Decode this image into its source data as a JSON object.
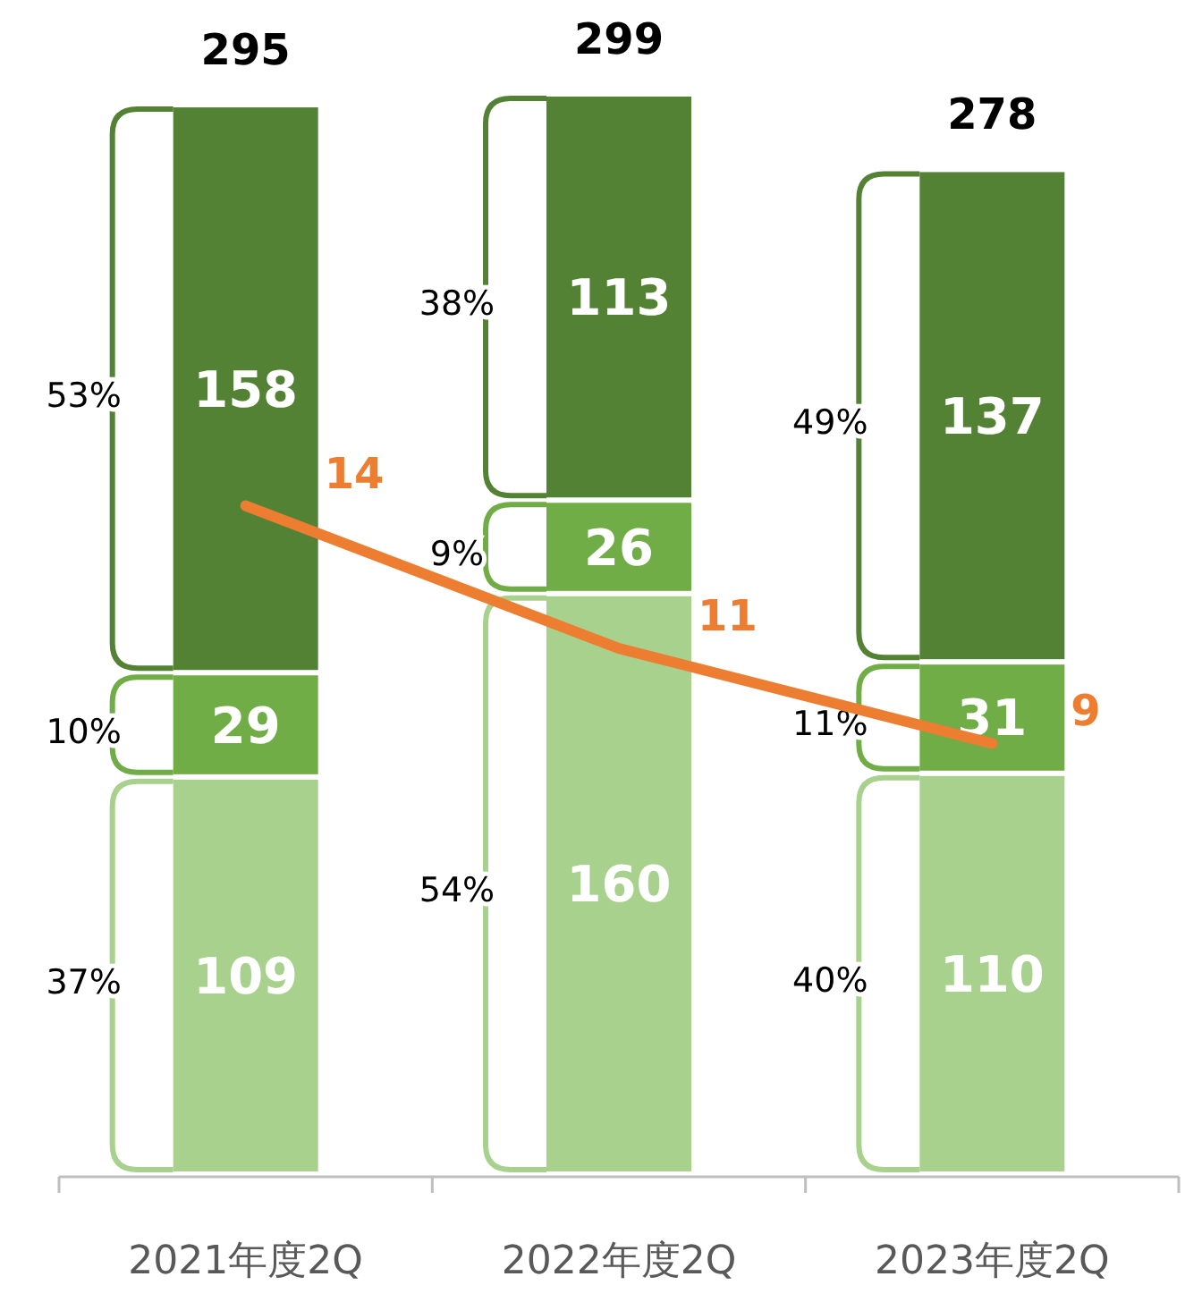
{
  "chart_data": {
    "type": "bar",
    "stacked": true,
    "categories": [
      "2021年度2Q",
      "2022年度2Q",
      "2023年度2Q"
    ],
    "series": [
      {
        "type": "bar",
        "color": "#a9d18e",
        "values": [
          109,
          160,
          110
        ]
      },
      {
        "type": "bar",
        "color": "#70ad47",
        "values": [
          29,
          26,
          31
        ]
      },
      {
        "type": "bar",
        "color": "#548235",
        "values": [
          158,
          113,
          137
        ]
      },
      {
        "type": "line",
        "axis": "y2",
        "color": "#ed7d31",
        "values": [
          14,
          11,
          9
        ]
      }
    ],
    "data_labels": true,
    "totals": [
      "295",
      "299",
      "278"
    ],
    "ylim": [
      0,
      300
    ],
    "annotations": [
      "37%",
      "10%",
      "53%",
      "54%",
      "9%",
      "38%",
      "40%",
      "11%",
      "49%"
    ]
  }
}
